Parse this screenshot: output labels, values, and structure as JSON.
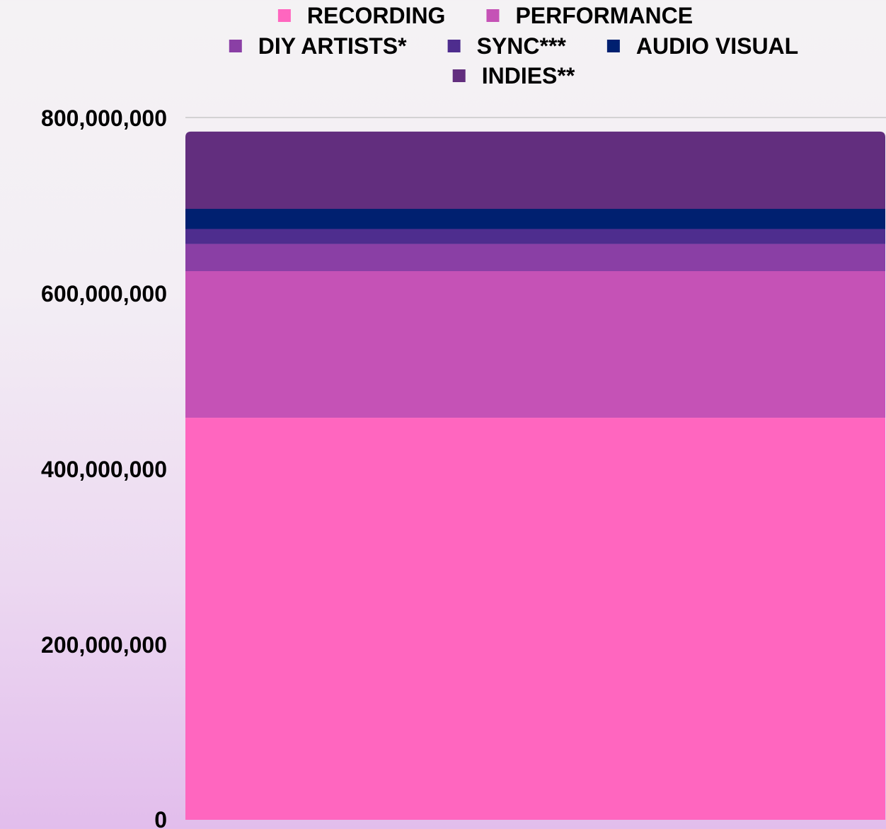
{
  "chart_data": {
    "type": "bar",
    "stacked": true,
    "categories": [
      ""
    ],
    "series": [
      {
        "name": "RECORDING",
        "values": [
          458000000
        ],
        "color": "#ff66bf"
      },
      {
        "name": "PERFORMANCE",
        "values": [
          167000000
        ],
        "color": "#c552b6"
      },
      {
        "name": "DIY ARTISTS*",
        "values": [
          31000000
        ],
        "color": "#8a3fa5"
      },
      {
        "name": "SYNC***",
        "values": [
          17000000
        ],
        "color": "#4e2d8e"
      },
      {
        "name": "AUDIO VISUAL",
        "values": [
          23000000
        ],
        "color": "#002070"
      },
      {
        "name": "INDIES**",
        "values": [
          88000000
        ],
        "color": "#622e7e"
      }
    ],
    "yticks": [
      0,
      200000000,
      400000000,
      600000000,
      800000000
    ],
    "ytick_labels": [
      "0",
      "200,000,000",
      "400,000,000",
      "600,000,000",
      "800,000,000"
    ],
    "ylim": [
      0,
      800000000
    ],
    "legend_position": "top",
    "grid": "top gridline only",
    "title": "",
    "xlabel": "",
    "ylabel": ""
  }
}
